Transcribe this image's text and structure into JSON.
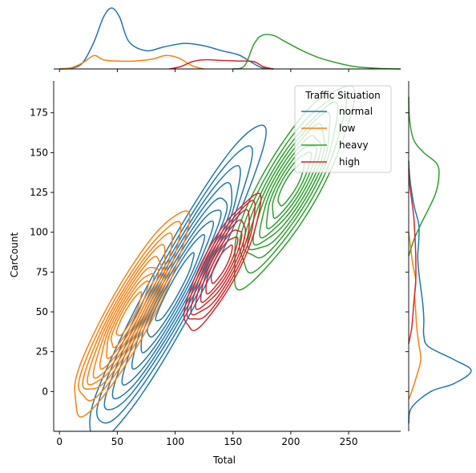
{
  "chart_data": {
    "type": "jointplot-kde",
    "xlabel": "Total",
    "ylabel": "CarCount",
    "xlim": [
      -5,
      295
    ],
    "ylim": [
      -25,
      195
    ],
    "x_ticks": [
      0,
      50,
      100,
      150,
      200,
      250
    ],
    "y_ticks": [
      0,
      25,
      50,
      75,
      100,
      125,
      150,
      175
    ],
    "x_tick_labels": [
      "0",
      "50",
      "100",
      "150",
      "200",
      "250"
    ],
    "y_tick_labels": [
      "0",
      "25",
      "50",
      "75",
      "100",
      "125",
      "150",
      "175"
    ],
    "legend": {
      "title": "Traffic Situation",
      "placement": "top-right"
    },
    "series": [
      {
        "name": "normal",
        "color": "#1f77b4",
        "joint": {
          "center": [
            100,
            65
          ],
          "axis": [
            0.6,
            0.8
          ],
          "sd_major": 44,
          "sd_minor": 7.5,
          "level_radii": [
            0.6,
            0.9,
            1.15,
            1.4,
            1.65,
            1.9,
            2.15,
            2.45,
            2.8
          ],
          "range": [
            15,
            170,
            -15,
            135
          ]
        },
        "x_marginal": [
          [
            0,
            0
          ],
          [
            10,
            0.01
          ],
          [
            20,
            0.1
          ],
          [
            30,
            0.45
          ],
          [
            38,
            0.85
          ],
          [
            45,
            1.0
          ],
          [
            52,
            0.85
          ],
          [
            60,
            0.45
          ],
          [
            75,
            0.3
          ],
          [
            90,
            0.36
          ],
          [
            108,
            0.42
          ],
          [
            125,
            0.38
          ],
          [
            140,
            0.3
          ],
          [
            155,
            0.23
          ],
          [
            165,
            0.12
          ],
          [
            175,
            0.02
          ],
          [
            185,
            0
          ]
        ],
        "y_marginal": [
          [
            -20,
            0
          ],
          [
            -10,
            0.03
          ],
          [
            0,
            0.22
          ],
          [
            5,
            0.45
          ],
          [
            13,
            0.62
          ],
          [
            20,
            0.45
          ],
          [
            28,
            0.2
          ],
          [
            35,
            0.15
          ],
          [
            45,
            0.15
          ],
          [
            55,
            0.14
          ],
          [
            65,
            0.12
          ],
          [
            75,
            0.1
          ],
          [
            85,
            0.09
          ],
          [
            95,
            0.1
          ],
          [
            105,
            0.1
          ],
          [
            115,
            0.06
          ],
          [
            125,
            0.03
          ],
          [
            135,
            0.01
          ],
          [
            145,
            0
          ]
        ]
      },
      {
        "name": "low",
        "color": "#ff7f0e",
        "joint": {
          "center": [
            60,
            48
          ],
          "axis": [
            0.6,
            0.8
          ],
          "sd_major": 28,
          "sd_minor": 6.5,
          "level_radii": [
            0.6,
            0.9,
            1.15,
            1.4,
            1.65,
            1.9,
            2.15,
            2.45,
            2.8
          ],
          "range": [
            5,
            120,
            -5,
            100
          ]
        },
        "x_marginal": [
          [
            0,
            0
          ],
          [
            10,
            0.02
          ],
          [
            20,
            0.1
          ],
          [
            30,
            0.22
          ],
          [
            38,
            0.15
          ],
          [
            50,
            0.13
          ],
          [
            65,
            0.13
          ],
          [
            80,
            0.16
          ],
          [
            92,
            0.22
          ],
          [
            103,
            0.18
          ],
          [
            115,
            0.05
          ],
          [
            125,
            0
          ]
        ],
        "y_marginal": [
          [
            -5,
            0
          ],
          [
            0,
            0.03
          ],
          [
            10,
            0.08
          ],
          [
            20,
            0.12
          ],
          [
            30,
            0.1
          ],
          [
            40,
            0.08
          ],
          [
            50,
            0.07
          ],
          [
            60,
            0.06
          ],
          [
            70,
            0.07
          ],
          [
            80,
            0.04
          ],
          [
            90,
            0.02
          ],
          [
            100,
            0
          ]
        ]
      },
      {
        "name": "heavy",
        "color": "#2ca02c",
        "joint": {
          "center": [
            200,
            130
          ],
          "axis": [
            0.62,
            0.78
          ],
          "sd_major": 28,
          "sd_minor": 8,
          "level_radii": [
            0.6,
            0.9,
            1.15,
            1.4,
            1.65,
            1.9,
            2.15,
            2.45,
            2.8
          ],
          "range": [
            150,
            240,
            90,
            160
          ]
        },
        "x_marginal": [
          [
            150,
            0
          ],
          [
            160,
            0.05
          ],
          [
            168,
            0.4
          ],
          [
            175,
            0.55
          ],
          [
            185,
            0.55
          ],
          [
            195,
            0.45
          ],
          [
            210,
            0.3
          ],
          [
            225,
            0.18
          ],
          [
            240,
            0.1
          ],
          [
            255,
            0.04
          ],
          [
            275,
            0.01
          ],
          [
            295,
            0
          ]
        ],
        "y_marginal": [
          [
            85,
            0
          ],
          [
            95,
            0.05
          ],
          [
            105,
            0.12
          ],
          [
            115,
            0.2
          ],
          [
            125,
            0.27
          ],
          [
            135,
            0.3
          ],
          [
            143,
            0.28
          ],
          [
            150,
            0.15
          ],
          [
            158,
            0.05
          ],
          [
            170,
            0.01
          ],
          [
            185,
            0
          ]
        ]
      },
      {
        "name": "high",
        "color": "#d62728",
        "joint": {
          "center": [
            140,
            80
          ],
          "axis": [
            0.6,
            0.8
          ],
          "sd_major": 24,
          "sd_minor": 6.5,
          "level_radii": [
            0.6,
            0.9,
            1.15,
            1.4,
            1.65,
            1.9,
            2.15
          ],
          "range": [
            110,
            170,
            40,
            122
          ]
        },
        "x_marginal": [
          [
            95,
            0
          ],
          [
            105,
            0.04
          ],
          [
            115,
            0.12
          ],
          [
            125,
            0.15
          ],
          [
            140,
            0.14
          ],
          [
            155,
            0.13
          ],
          [
            168,
            0.12
          ],
          [
            176,
            0.04
          ],
          [
            185,
            0
          ]
        ],
        "y_marginal": [
          [
            30,
            0
          ],
          [
            40,
            0.03
          ],
          [
            55,
            0.05
          ],
          [
            70,
            0.07
          ],
          [
            85,
            0.07
          ],
          [
            100,
            0.06
          ],
          [
            110,
            0.05
          ],
          [
            120,
            0.03
          ],
          [
            130,
            0.01
          ],
          [
            140,
            0
          ]
        ]
      }
    ]
  }
}
